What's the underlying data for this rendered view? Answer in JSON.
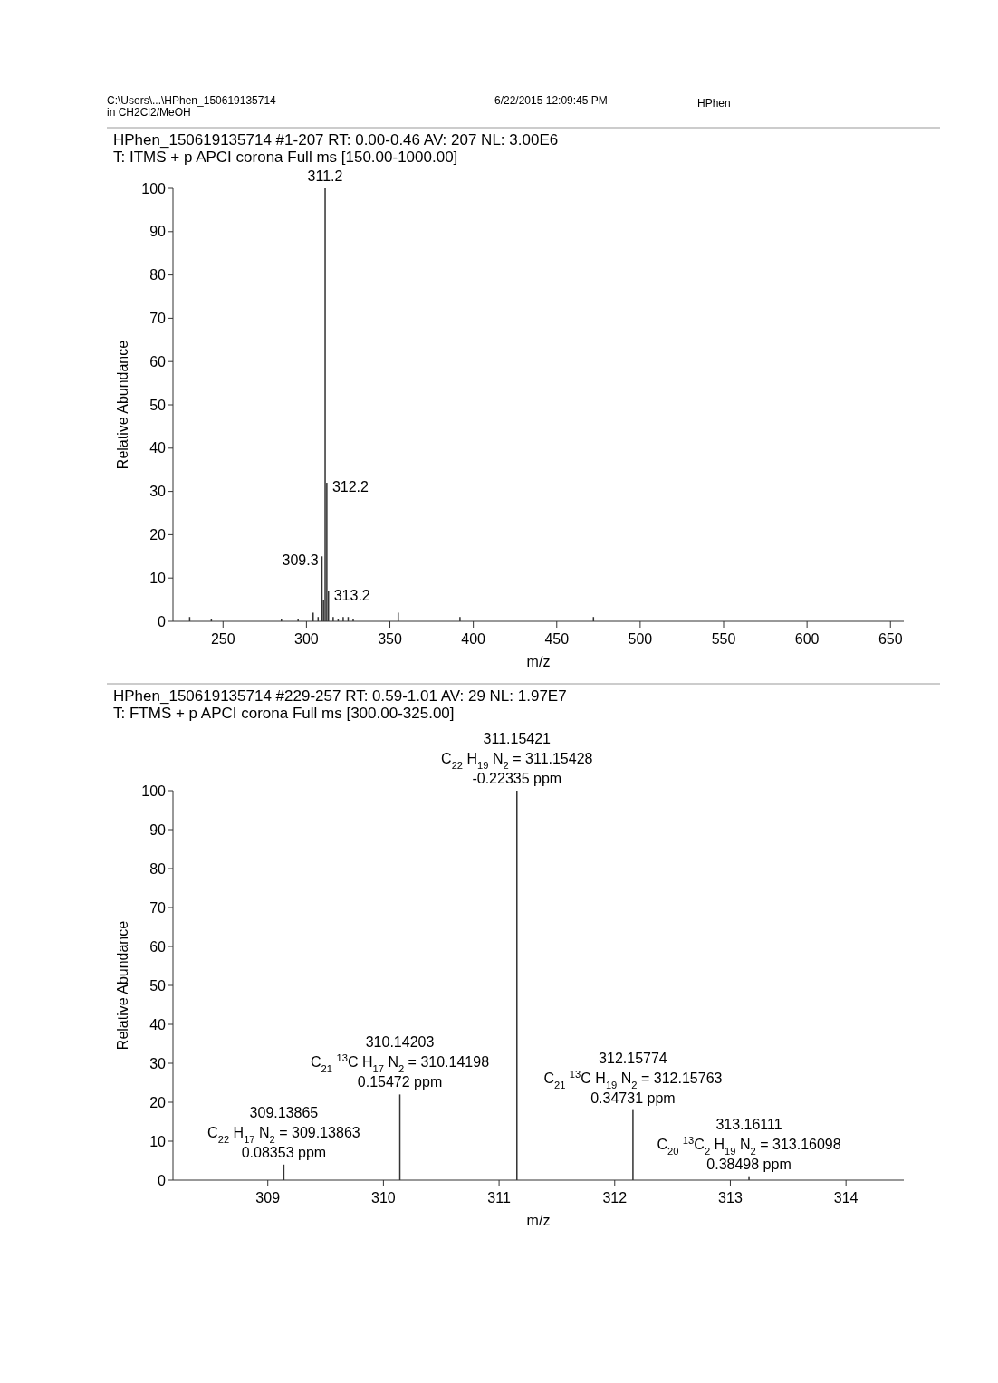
{
  "chart_data": [
    {
      "type": "bar",
      "title": "HPhen_150619135714 #1-207   RT: 0.00-0.46   AV: 207   NL: 3.00E6",
      "subtitle": "T: ITMS + p APCI corona Full ms [150.00-1000.00]",
      "xlabel": "m/z",
      "ylabel": "Relative Abundance",
      "annotations": [
        "C:\\Users\\...\\HPhen_150619135714",
        "in CH2Cl2/MeOH",
        "6/22/2015 12:09:45 PM",
        "HPhen",
        {
          "text": "311.2",
          "x": 311.2,
          "y": 100
        },
        {
          "text": "312.2",
          "x": 312.2,
          "y": 32
        },
        {
          "text": "309.3",
          "x": 309.3,
          "y": 15
        },
        {
          "text": "313.2",
          "x": 313.2,
          "y": 7
        }
      ],
      "x": [
        230,
        243,
        285,
        295,
        304,
        307,
        309.3,
        310.2,
        311.2,
        312.2,
        313.2,
        316,
        319,
        322,
        325,
        328,
        355,
        392,
        472
      ],
      "series": [
        {
          "color": "#333333",
          "values": [
            1,
            0.5,
            0.5,
            0.5,
            2,
            1,
            15,
            5,
            100,
            32,
            7,
            1,
            0.5,
            1,
            1,
            0.5,
            2,
            1,
            1
          ]
        }
      ],
      "xlim": [
        220,
        658
      ],
      "ylim": [
        0,
        100
      ],
      "xticks": [
        250,
        300,
        350,
        400,
        450,
        500,
        550,
        600,
        650
      ],
      "yticks": [
        0,
        10,
        20,
        30,
        40,
        50,
        60,
        70,
        80,
        90,
        100
      ]
    },
    {
      "type": "bar",
      "title": "HPhen_150619135714 #229-257   RT: 0.59-1.01   AV: 29   NL: 1.97E7",
      "subtitle": "T: FTMS + p APCI corona Full ms [300.00-325.00]",
      "xlabel": "m/z",
      "ylabel": "Relative Abundance",
      "annotations": [
        "309.13865",
        "C$_{22}$ H$_{17}$ N$_{2}$ = 309.13863",
        "0.08353 ppm",
        "310.14203",
        "C$_{21}$ $^{13}$C H$_{17}$ N$_{2}$ = 310.14198",
        "0.15472 ppm",
        "311.15421",
        "C$_{22}$ H$_{19}$ N$_{2}$ = 311.15428",
        "-0.22335 ppm",
        "312.15774",
        "C$_{21}$ $^{13}$C H$_{19}$ N$_{2}$ = 312.15763",
        "0.34731 ppm",
        "313.16111",
        "C$_{20}$ $^{13}$C$_{2}$ H$_{19}$ N$_{2}$ = 313.16098",
        "0.38498 ppm"
      ],
      "x": [
        309.13865,
        310.14203,
        311.15421,
        312.15774,
        313.16111
      ],
      "series": [
        {
          "color": "#333333",
          "values": [
            4,
            22,
            100,
            18,
            1
          ]
        }
      ],
      "xlim": [
        308.18,
        314.5
      ],
      "ylim": [
        0,
        100
      ],
      "xticks": [
        309,
        310,
        311,
        312,
        313,
        314
      ],
      "yticks": [
        0,
        10,
        20,
        30,
        40,
        50,
        60,
        70,
        80,
        90,
        100
      ]
    }
  ]
}
